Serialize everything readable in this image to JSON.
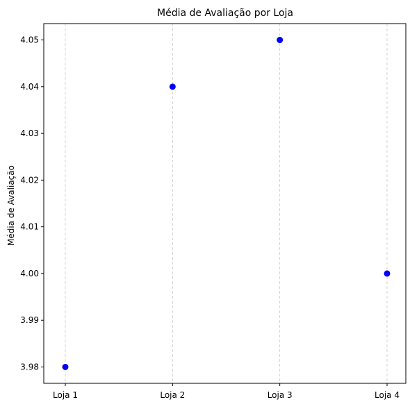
{
  "chart_data": {
    "type": "scatter",
    "title": "Média de Avaliação por Loja",
    "xlabel": "",
    "ylabel": "Média de Avaliação",
    "categories": [
      "Loja 1",
      "Loja 2",
      "Loja 3",
      "Loja 4"
    ],
    "values": [
      3.98,
      4.04,
      4.05,
      4.0
    ],
    "ylim": [
      3.9765,
      4.0535
    ],
    "yticks": [
      "3.98",
      "3.99",
      "4.00",
      "4.01",
      "4.02",
      "4.03",
      "4.04",
      "4.05"
    ],
    "grid": "vertical dashed",
    "marker_color": "#0000ff",
    "grid_color": "#c8c8c8"
  }
}
